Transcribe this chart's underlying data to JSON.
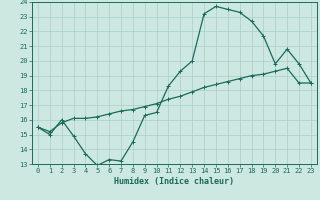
{
  "title": "",
  "xlabel": "Humidex (Indice chaleur)",
  "ylabel": "",
  "bg_color": "#cce8e0",
  "grid_color": "#aacfc8",
  "line_color": "#1a6b5a",
  "xlim": [
    -0.5,
    23.5
  ],
  "ylim": [
    13,
    24
  ],
  "xticks": [
    0,
    1,
    2,
    3,
    4,
    5,
    6,
    7,
    8,
    9,
    10,
    11,
    12,
    13,
    14,
    15,
    16,
    17,
    18,
    19,
    20,
    21,
    22,
    23
  ],
  "yticks": [
    13,
    14,
    15,
    16,
    17,
    18,
    19,
    20,
    21,
    22,
    23,
    24
  ],
  "line1_x": [
    0,
    1,
    2,
    3,
    4,
    5,
    6,
    7,
    8,
    9,
    10,
    11,
    12,
    13,
    14,
    15,
    16,
    17,
    18,
    19,
    20,
    21,
    22,
    23
  ],
  "line1_y": [
    15.5,
    15.0,
    16.0,
    14.9,
    13.7,
    12.9,
    13.3,
    13.2,
    14.5,
    16.3,
    16.5,
    18.3,
    19.3,
    20.0,
    23.2,
    23.7,
    23.5,
    23.3,
    22.7,
    21.7,
    19.8,
    20.8,
    19.8,
    18.5
  ],
  "line2_x": [
    0,
    1,
    2,
    3,
    4,
    5,
    6,
    7,
    8,
    9,
    10,
    11,
    12,
    13,
    14,
    15,
    16,
    17,
    18,
    19,
    20,
    21,
    22,
    23
  ],
  "line2_y": [
    15.5,
    15.2,
    15.8,
    16.1,
    16.1,
    16.2,
    16.4,
    16.6,
    16.7,
    16.9,
    17.1,
    17.4,
    17.6,
    17.9,
    18.2,
    18.4,
    18.6,
    18.8,
    19.0,
    19.1,
    19.3,
    19.5,
    18.5,
    18.5
  ],
  "marker_size": 2.5,
  "line_width": 0.9,
  "tick_fontsize": 5.0,
  "xlabel_fontsize": 6.0
}
